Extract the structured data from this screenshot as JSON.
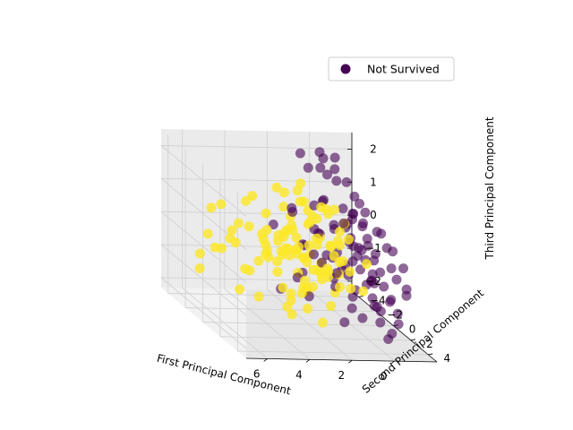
{
  "colors": {
    "not_survived": "#440154",
    "survived": "#fde725",
    "pane_left": "#f2f2f2",
    "pane_right": "#ebebeb",
    "pane_floor": "#e6e6e6",
    "grid": "#cfcfcf"
  },
  "chart_data": {
    "type": "scatter",
    "projection": "3d",
    "title": "",
    "xlabel": "First Principal Component",
    "ylabel": "Second Principal Component",
    "zlabel": "Third Principal Component",
    "xlim": [
      -2,
      7
    ],
    "ylim": [
      -4.8,
      5
    ],
    "zlim": [
      -2.3,
      2.5
    ],
    "x_ticks": [
      6,
      4,
      2,
      0
    ],
    "y_ticks": [
      -4,
      -2,
      0,
      2,
      4
    ],
    "z_ticks": [
      2,
      1,
      0,
      -1,
      -2
    ],
    "grid": true,
    "legend": {
      "placement": "top-right",
      "entries": [
        "Not Survived"
      ]
    },
    "series": [
      {
        "name": "Not Survived",
        "color": "#440154",
        "alpha": 0.6,
        "points": [
          [
            -1.2,
            -2.8,
            0.3
          ],
          [
            -1.0,
            -2.5,
            -0.2
          ],
          [
            -0.8,
            -2.9,
            0.6
          ],
          [
            -1.4,
            -2.2,
            -0.5
          ],
          [
            -1.1,
            -3.1,
            0.1
          ],
          [
            -0.9,
            -2.0,
            -0.8
          ],
          [
            -1.3,
            -1.8,
            0.4
          ],
          [
            -0.7,
            -2.4,
            -1.0
          ],
          [
            -1.5,
            -2.7,
            0.8
          ],
          [
            -1.0,
            -1.6,
            -0.3
          ],
          [
            -0.6,
            -2.1,
            0.2
          ],
          [
            -1.2,
            -1.3,
            -0.6
          ],
          [
            -0.8,
            -1.7,
            0.7
          ],
          [
            -1.4,
            -1.1,
            -1.2
          ],
          [
            -1.1,
            -2.3,
            1.1
          ],
          [
            -0.5,
            -1.4,
            -0.1
          ],
          [
            -0.9,
            -0.9,
            0.5
          ],
          [
            -1.3,
            -0.7,
            -0.9
          ],
          [
            -0.7,
            -1.2,
            -1.5
          ],
          [
            -1.0,
            -0.5,
            0.0
          ],
          [
            -0.4,
            -0.8,
            0.9
          ],
          [
            -1.2,
            -0.3,
            -0.4
          ],
          [
            -0.8,
            -0.1,
            0.3
          ],
          [
            -1.5,
            0.1,
            -1.1
          ],
          [
            -0.6,
            -0.4,
            -0.7
          ],
          [
            -1.1,
            0.3,
            0.6
          ],
          [
            -0.3,
            0.0,
            -0.2
          ],
          [
            -0.9,
            0.5,
            -1.6
          ],
          [
            -1.4,
            0.7,
            0.2
          ],
          [
            -0.5,
            0.4,
            1.2
          ],
          [
            -1.0,
            0.9,
            -0.5
          ],
          [
            -0.7,
            1.1,
            0.1
          ],
          [
            -1.3,
            1.3,
            -1.3
          ],
          [
            -0.4,
            0.8,
            -0.9
          ],
          [
            -0.8,
            1.5,
            0.8
          ],
          [
            -1.2,
            1.7,
            -0.2
          ],
          [
            -0.6,
            1.9,
            -1.8
          ],
          [
            -1.1,
            2.1,
            0.4
          ],
          [
            -0.3,
            1.6,
            -0.6
          ],
          [
            -0.9,
            2.4,
            -1.0
          ],
          [
            -1.4,
            2.6,
            0.0
          ],
          [
            -0.5,
            2.2,
            -1.4
          ],
          [
            -1.0,
            2.8,
            -0.3
          ],
          [
            -0.7,
            3.0,
            -1.9
          ],
          [
            -1.3,
            3.2,
            -0.7
          ],
          [
            -0.2,
            2.5,
            -1.2
          ],
          [
            -0.8,
            3.5,
            -1.5
          ],
          [
            -1.1,
            3.7,
            -0.4
          ],
          [
            -0.4,
            3.3,
            -2.0
          ],
          [
            -0.6,
            3.9,
            -1.1
          ],
          [
            0.2,
            -1.5,
            0.4
          ],
          [
            0.1,
            -0.8,
            -0.8
          ],
          [
            0.4,
            -2.2,
            1.0
          ],
          [
            0.0,
            0.2,
            -1.4
          ],
          [
            0.3,
            1.0,
            0.3
          ],
          [
            0.5,
            -0.4,
            -0.2
          ],
          [
            0.2,
            1.8,
            -1.7
          ],
          [
            0.6,
            0.6,
            0.9
          ],
          [
            0.1,
            2.7,
            -0.9
          ],
          [
            0.4,
            -1.0,
            -1.1
          ],
          [
            0.8,
            0.0,
            0.6
          ],
          [
            0.7,
            1.4,
            -0.5
          ],
          [
            1.0,
            -1.8,
            0.2
          ],
          [
            0.9,
            2.3,
            -1.3
          ],
          [
            1.2,
            0.8,
            -0.1
          ],
          [
            1.1,
            -0.6,
            1.3
          ],
          [
            1.4,
            1.6,
            -0.8
          ],
          [
            1.3,
            -2.4,
            -0.4
          ],
          [
            1.6,
            0.3,
            0.5
          ],
          [
            1.5,
            2.9,
            -1.6
          ],
          [
            1.8,
            -1.2,
            -1.0
          ],
          [
            2.0,
            1.1,
            0.7
          ],
          [
            1.9,
            -0.2,
            -1.5
          ],
          [
            2.2,
            2.0,
            0.0
          ],
          [
            2.4,
            -0.9,
            0.9
          ],
          [
            0.9,
            -3.2,
            -0.6
          ],
          [
            0.3,
            3.4,
            -0.3
          ],
          [
            -0.2,
            -3.3,
            -0.9
          ],
          [
            0.6,
            -2.8,
            0.7
          ],
          [
            1.7,
            2.5,
            -0.2
          ],
          [
            0.0,
            -1.9,
            2.0
          ],
          [
            -0.3,
            -2.6,
            2.2
          ],
          [
            0.2,
            -1.2,
            1.8
          ],
          [
            -0.1,
            -3.0,
            1.6
          ],
          [
            0.5,
            -2.0,
            2.3
          ],
          [
            1.0,
            -2.5,
            1.9
          ],
          [
            0.8,
            -1.6,
            2.1
          ],
          [
            -0.4,
            -1.5,
            1.7
          ],
          [
            1.5,
            -2.2,
            2.4
          ],
          [
            0.3,
            -2.9,
            2.3
          ],
          [
            2.6,
            -0.5,
            1.1
          ],
          [
            2.9,
            0.9,
            -0.7
          ],
          [
            3.1,
            -1.4,
            0.4
          ],
          [
            2.5,
            1.8,
            0.2
          ],
          [
            3.4,
            0.2,
            -1.2
          ]
        ]
      },
      {
        "name": "",
        "color": "#fde725",
        "alpha": 0.8,
        "points": [
          [
            1.2,
            0.5,
            0.2
          ],
          [
            1.5,
            0.2,
            -0.4
          ],
          [
            1.8,
            0.8,
            0.5
          ],
          [
            2.1,
            0.4,
            -0.1
          ],
          [
            2.4,
            1.0,
            0.3
          ],
          [
            1.4,
            -0.5,
            0.0
          ],
          [
            1.7,
            -0.2,
            -0.7
          ],
          [
            2.0,
            0.1,
            0.8
          ],
          [
            2.3,
            -0.6,
            -0.3
          ],
          [
            2.6,
            0.3,
            0.1
          ],
          [
            1.1,
            1.3,
            -0.5
          ],
          [
            1.6,
            1.6,
            0.4
          ],
          [
            1.9,
            1.9,
            -0.2
          ],
          [
            2.2,
            1.4,
            0.6
          ],
          [
            2.5,
            1.7,
            -0.8
          ],
          [
            1.3,
            -1.3,
            0.7
          ],
          [
            1.8,
            -1.0,
            -0.5
          ],
          [
            2.1,
            -1.6,
            0.2
          ],
          [
            2.7,
            -0.9,
            -0.2
          ],
          [
            3.0,
            -0.3,
            0.4
          ],
          [
            2.8,
            0.7,
            -0.6
          ],
          [
            3.1,
            1.2,
            0.2
          ],
          [
            3.3,
            0.0,
            -0.1
          ],
          [
            3.5,
            0.8,
            0.5
          ],
          [
            3.7,
            -0.5,
            -0.4
          ],
          [
            2.9,
            2.0,
            0.0
          ],
          [
            3.2,
            2.3,
            -0.7
          ],
          [
            3.6,
            1.6,
            0.3
          ],
          [
            3.9,
            1.0,
            -0.2
          ],
          [
            4.1,
            0.3,
            0.6
          ],
          [
            0.9,
            0.9,
            0.3
          ],
          [
            1.0,
            -0.2,
            -0.9
          ],
          [
            0.7,
            0.4,
            0.6
          ],
          [
            0.8,
            1.8,
            -0.3
          ],
          [
            1.3,
            2.2,
            0.1
          ],
          [
            1.6,
            2.6,
            -0.6
          ],
          [
            2.0,
            2.9,
            0.4
          ],
          [
            2.4,
            2.5,
            -0.4
          ],
          [
            1.2,
            -2.0,
            0.3
          ],
          [
            1.6,
            -2.4,
            -0.2
          ],
          [
            2.0,
            -2.1,
            0.5
          ],
          [
            2.5,
            -1.8,
            -0.6
          ],
          [
            2.9,
            -1.3,
            0.1
          ],
          [
            3.3,
            -1.8,
            -0.3
          ],
          [
            3.8,
            -1.0,
            0.2
          ],
          [
            4.2,
            -0.4,
            -0.5
          ],
          [
            4.4,
            0.9,
            0.0
          ],
          [
            4.0,
            1.9,
            -0.8
          ],
          [
            3.4,
            2.8,
            0.3
          ],
          [
            2.7,
            3.1,
            -0.1
          ],
          [
            0.5,
            3.0,
            0.2
          ],
          [
            0.6,
            -3.5,
            0.4
          ],
          [
            0.9,
            3.6,
            -0.5
          ],
          [
            1.5,
            -3.2,
            0.0
          ],
          [
            1.9,
            3.3,
            0.3
          ],
          [
            2.3,
            -2.8,
            -0.4
          ],
          [
            2.6,
            3.7,
            0.1
          ],
          [
            3.0,
            -2.5,
            0.5
          ],
          [
            3.5,
            3.2,
            -0.3
          ],
          [
            4.0,
            -2.0,
            0.2
          ],
          [
            4.5,
            2.5,
            -0.2
          ],
          [
            4.7,
            -1.5,
            0.4
          ],
          [
            5.0,
            0.5,
            -0.6
          ],
          [
            4.8,
            1.6,
            0.6
          ],
          [
            5.2,
            -0.6,
            0.0
          ],
          [
            5.5,
            1.2,
            -0.4
          ],
          [
            5.8,
            0.2,
            0.3
          ],
          [
            6.1,
            -0.8,
            -0.2
          ],
          [
            6.4,
            0.7,
            0.1
          ],
          [
            6.6,
            -1.3,
            -0.5
          ],
          [
            5.3,
            2.3,
            -1.0
          ],
          [
            5.7,
            -2.2,
            0.7
          ],
          [
            4.3,
            3.4,
            0.5
          ],
          [
            6.0,
            1.8,
            -0.9
          ],
          [
            6.8,
            0.1,
            0.4
          ],
          [
            1.0,
            0.6,
            -1.2
          ],
          [
            1.4,
            1.1,
            -1.5
          ],
          [
            1.9,
            -0.4,
            -1.3
          ],
          [
            2.3,
            0.6,
            -1.7
          ],
          [
            2.8,
            -0.1,
            -1.4
          ],
          [
            3.2,
            1.0,
            -1.8
          ],
          [
            1.5,
            -1.4,
            -1.6
          ],
          [
            2.0,
            1.6,
            -1.9
          ],
          [
            2.6,
            -1.0,
            -2.0
          ],
          [
            3.0,
            0.4,
            -1.5
          ],
          [
            1.2,
            0.0,
            1.2
          ],
          [
            1.7,
            0.7,
            1.4
          ],
          [
            2.2,
            -0.5,
            1.3
          ],
          [
            2.6,
            0.9,
            1.6
          ],
          [
            3.1,
            -0.2,
            1.2
          ],
          [
            1.4,
            1.5,
            1.5
          ],
          [
            1.9,
            -1.2,
            1.7
          ],
          [
            2.4,
            1.9,
            1.3
          ],
          [
            2.9,
            -1.5,
            1.5
          ],
          [
            3.4,
            0.6,
            1.8
          ],
          [
            0.8,
            -0.7,
            0.9
          ],
          [
            1.1,
            2.4,
            0.8
          ],
          [
            0.6,
            1.4,
            -0.9
          ],
          [
            0.9,
            -1.6,
            -1.0
          ],
          [
            0.4,
            0.2,
            0.8
          ],
          [
            3.6,
            -2.6,
            1.0
          ],
          [
            4.1,
            2.6,
            1.1
          ],
          [
            2.1,
            3.6,
            1.0
          ],
          [
            1.3,
            -3.0,
            1.1
          ],
          [
            4.6,
            -0.9,
            1.2
          ],
          [
            5.4,
            -1.8,
            0.9
          ],
          [
            6.2,
            1.4,
            0.8
          ],
          [
            5.1,
            2.8,
            0.5
          ],
          [
            3.8,
            3.6,
            -0.6
          ],
          [
            6.9,
            -0.6,
            -0.8
          ]
        ]
      }
    ]
  }
}
